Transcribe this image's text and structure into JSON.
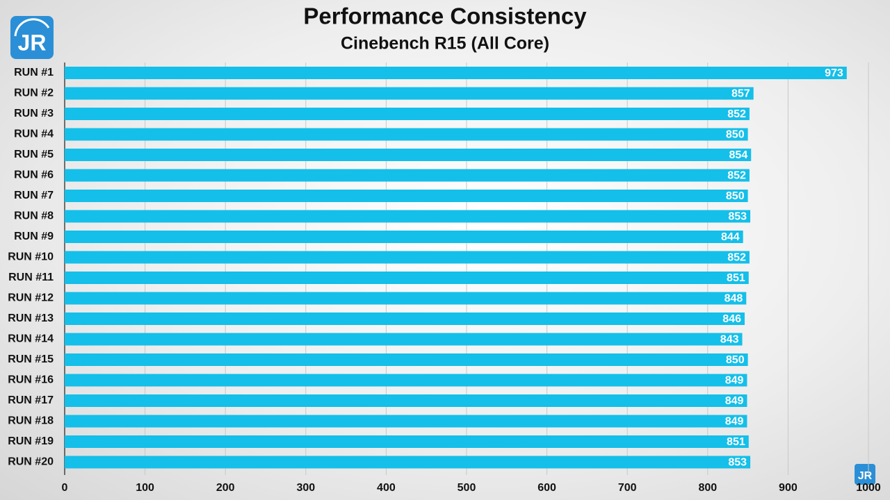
{
  "logo": "JR",
  "chart_data": {
    "type": "bar",
    "orientation": "horizontal",
    "title": "Performance Consistency",
    "subtitle": "Cinebench R15 (All Core)",
    "categories": [
      "RUN #1",
      "RUN #2",
      "RUN #3",
      "RUN #4",
      "RUN #5",
      "RUN #6",
      "RUN #7",
      "RUN #8",
      "RUN #9",
      "RUN #10",
      "RUN #11",
      "RUN #12",
      "RUN #13",
      "RUN #14",
      "RUN #15",
      "RUN #16",
      "RUN #17",
      "RUN #18",
      "RUN #19",
      "RUN #20"
    ],
    "values": [
      973,
      857,
      852,
      850,
      854,
      852,
      850,
      853,
      844,
      852,
      851,
      848,
      846,
      843,
      850,
      849,
      849,
      849,
      851,
      853
    ],
    "color": "#14bfe9",
    "xlim": [
      0,
      1000
    ],
    "xticks": [
      0,
      100,
      200,
      300,
      400,
      500,
      600,
      700,
      800,
      900,
      1000
    ],
    "grid": true
  }
}
